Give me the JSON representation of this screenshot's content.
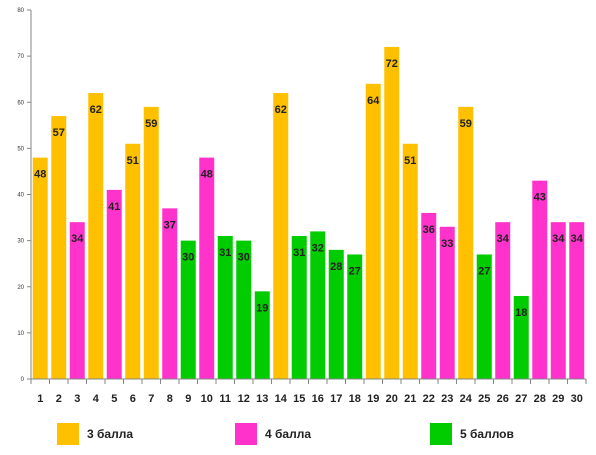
{
  "chart_data": {
    "type": "bar",
    "ylim": [
      0,
      80
    ],
    "yticks": [
      0,
      10,
      20,
      30,
      40,
      50,
      60,
      70,
      80
    ],
    "categories": [
      "1",
      "2",
      "3",
      "4",
      "5",
      "6",
      "7",
      "8",
      "9",
      "10",
      "11",
      "12",
      "13",
      "14",
      "15",
      "16",
      "17",
      "18",
      "19",
      "20",
      "21",
      "22",
      "23",
      "24",
      "25",
      "26",
      "27",
      "28",
      "29",
      "30"
    ],
    "values": [
      48,
      57,
      34,
      62,
      41,
      51,
      59,
      37,
      30,
      48,
      31,
      30,
      19,
      62,
      31,
      32,
      28,
      27,
      64,
      72,
      51,
      36,
      33,
      59,
      27,
      34,
      18,
      43,
      34,
      34
    ],
    "groups": [
      "3",
      "3",
      "4",
      "3",
      "4",
      "3",
      "3",
      "4",
      "5",
      "4",
      "5",
      "5",
      "5",
      "3",
      "5",
      "5",
      "5",
      "5",
      "3",
      "3",
      "3",
      "4",
      "4",
      "3",
      "5",
      "4",
      "5",
      "4",
      "4",
      "4"
    ],
    "grid": false,
    "legend_position": "bottom",
    "legend": [
      {
        "key": "3",
        "label": "3 балла",
        "color": "#FFC000"
      },
      {
        "key": "4",
        "label": "4 балла",
        "color": "#FF33CC"
      },
      {
        "key": "5",
        "label": "5 баллов",
        "color": "#00CC00"
      }
    ]
  }
}
